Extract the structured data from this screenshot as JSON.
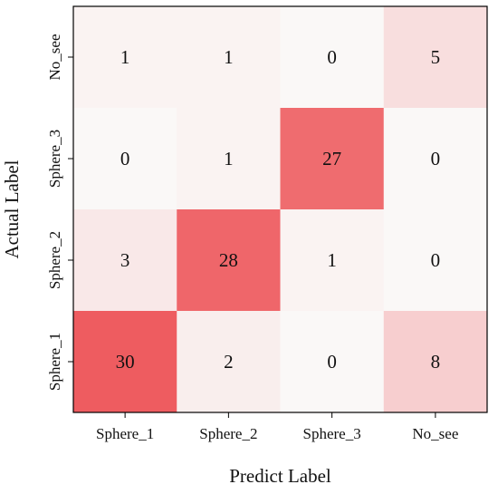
{
  "chart_data": {
    "type": "heatmap",
    "title": "",
    "xlabel": "Predict Label",
    "ylabel": "Actual Label",
    "x_categories": [
      "Sphere_1",
      "Sphere_2",
      "Sphere_3",
      "No_see"
    ],
    "y_categories_top_to_bottom": [
      "No_see",
      "Sphere_3",
      "Sphere_2",
      "Sphere_1"
    ],
    "values_top_to_bottom": [
      [
        1,
        1,
        0,
        5
      ],
      [
        0,
        1,
        27,
        0
      ],
      [
        3,
        28,
        1,
        0
      ],
      [
        30,
        2,
        0,
        8
      ]
    ],
    "value_range": [
      0,
      30
    ],
    "colormap": {
      "low": "#faf8f7",
      "high": "#ee5c60"
    },
    "grid": false,
    "legend": "none"
  }
}
